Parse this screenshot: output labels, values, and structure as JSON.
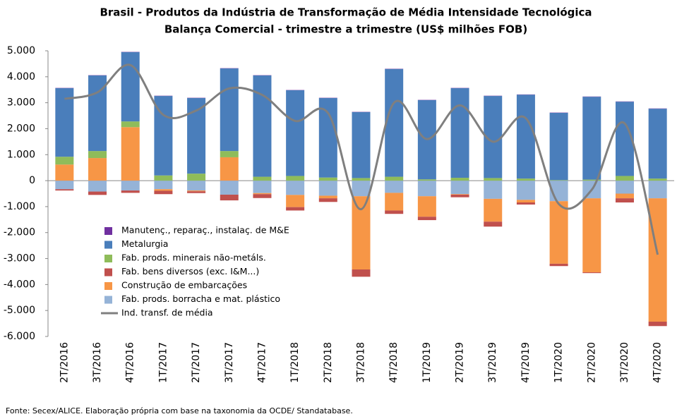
{
  "chart_data": {
    "type": "bar",
    "title": "Brasil - Produtos da Indústria de Transformação de Média Intensidade Tecnológica",
    "subtitle": "Balança Comercial - trimestre a trimestre (US$ milhões FOB)",
    "source": "Fonte: Secex/ALICE. Elaboração própria com base na taxonomia da OCDE/ Standatabase.",
    "categories": [
      "2T/2016",
      "3T/2016",
      "4T/2016",
      "1T/2017",
      "2T/2017",
      "3T/2017",
      "4T/2017",
      "1T/2018",
      "2T/2018",
      "3T/2018",
      "4T/2018",
      "1T/2019",
      "2T/2019",
      "3T/2019",
      "4T/2019",
      "1T/2020",
      "2T/2020",
      "3T/2020",
      "4T/2020"
    ],
    "ylim": [
      -6000,
      5000
    ],
    "yticks": [
      {
        "value": -6000,
        "label": "-6.000"
      },
      {
        "value": -5000,
        "label": "-5.000"
      },
      {
        "value": -4000,
        "label": "-4.000"
      },
      {
        "value": -3000,
        "label": "-3.000"
      },
      {
        "value": -2000,
        "label": "-2.000"
      },
      {
        "value": -1000,
        "label": "-1.000"
      },
      0,
      {
        "value": 1000,
        "label": "1.000"
      },
      {
        "value": 2000,
        "label": "2.000"
      },
      {
        "value": 3000,
        "label": "3.000"
      },
      {
        "value": 4000,
        "label": "4.000"
      },
      {
        "value": 5000,
        "label": "5.000"
      }
    ],
    "series": [
      {
        "name": "Manutenç., reparaç., instalaç. de M&E",
        "color": "#7030a0",
        "values": [
          10,
          10,
          10,
          10,
          10,
          10,
          10,
          10,
          10,
          10,
          10,
          10,
          10,
          10,
          10,
          10,
          10,
          10,
          10
        ]
      },
      {
        "name": "Metalurgia",
        "color": "#4a7ebb",
        "values": [
          2640,
          2910,
          2670,
          3060,
          2910,
          3180,
          3900,
          3300,
          3060,
          2540,
          4150,
          3050,
          3450,
          3160,
          3230,
          2590,
          3190,
          2860,
          2690
        ]
      },
      {
        "name": "Fab. prods. minerais não-metáls.",
        "color": "#8fbc5a",
        "values": [
          300,
          270,
          220,
          200,
          270,
          240,
          150,
          180,
          120,
          100,
          150,
          50,
          110,
          100,
          80,
          20,
          40,
          180,
          80
        ]
      },
      {
        "name": "Fab. bens diversos (exc. I&M...)",
        "color": "#c0504d",
        "values": [
          -50,
          -130,
          -90,
          -130,
          -70,
          -220,
          -150,
          -130,
          -140,
          -280,
          -130,
          -130,
          -100,
          -190,
          -80,
          -90,
          -30,
          -160,
          -170
        ]
      },
      {
        "name": "Construção de embarcações",
        "color": "#f79646",
        "values": [
          620,
          870,
          2060,
          -60,
          -30,
          900,
          -40,
          -470,
          -100,
          -2820,
          -680,
          -790,
          -20,
          -880,
          -100,
          -2410,
          -2850,
          -180,
          -4750
        ]
      },
      {
        "name": "Fab. prods. borracha e mat. plástico",
        "color": "#95b3d7",
        "values": [
          -330,
          -420,
          -380,
          -330,
          -380,
          -540,
          -480,
          -550,
          -580,
          -600,
          -470,
          -600,
          -520,
          -700,
          -740,
          -790,
          -680,
          -500,
          -680
        ]
      },
      {
        "name": "Ind. transf. de média",
        "color": "#7f7f7f",
        "type": "line",
        "values": [
          3150,
          3400,
          4450,
          2530,
          2700,
          3550,
          3300,
          2300,
          2600,
          -1100,
          3000,
          1600,
          2900,
          1500,
          2400,
          -900,
          -350,
          2200,
          -2850
        ]
      }
    ]
  }
}
